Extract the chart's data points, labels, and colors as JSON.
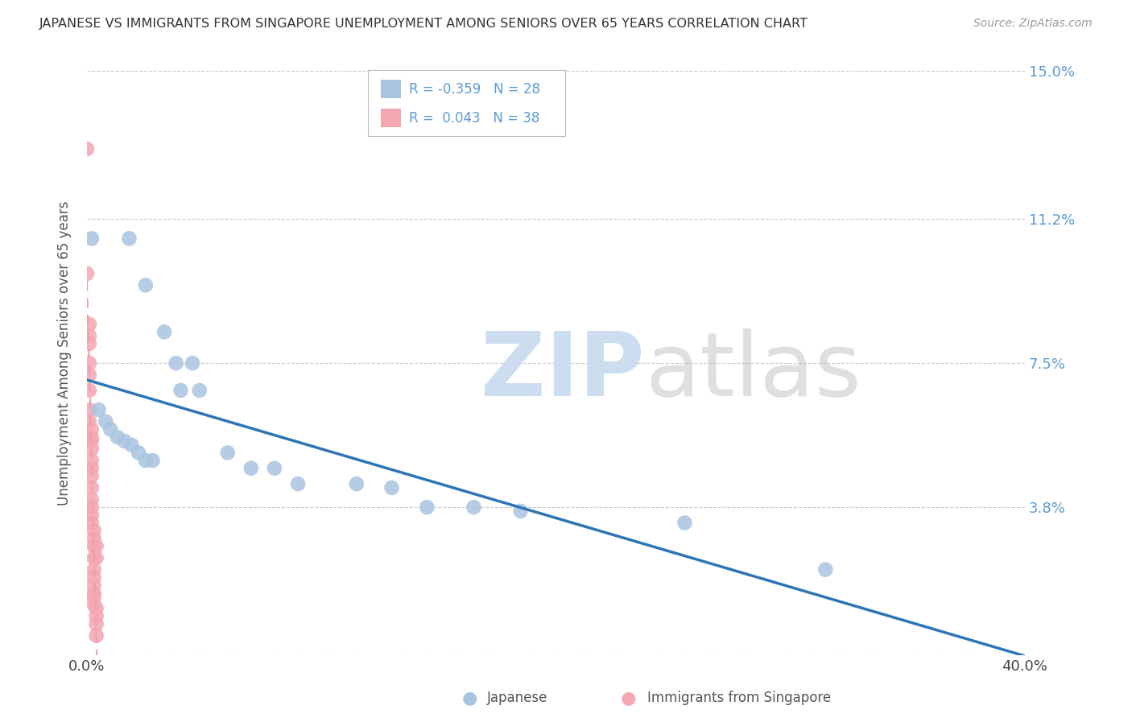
{
  "title": "JAPANESE VS IMMIGRANTS FROM SINGAPORE UNEMPLOYMENT AMONG SENIORS OVER 65 YEARS CORRELATION CHART",
  "source": "Source: ZipAtlas.com",
  "ylabel": "Unemployment Among Seniors over 65 years",
  "xlim": [
    0.0,
    0.4
  ],
  "ylim": [
    0.0,
    0.155
  ],
  "yticks": [
    0.0,
    0.038,
    0.075,
    0.112,
    0.15
  ],
  "ytick_labels": [
    "",
    "3.8%",
    "7.5%",
    "11.2%",
    "15.0%"
  ],
  "xticks": [
    0.0,
    0.1,
    0.2,
    0.3,
    0.4
  ],
  "xtick_labels": [
    "0.0%",
    "",
    "",
    "",
    "40.0%"
  ],
  "japanese_color": "#a8c4e0",
  "singapore_color": "#f4a7b0",
  "line_blue": "#2e75b6",
  "line_pink": "#e8a0a8",
  "japanese_R": "-0.359",
  "japanese_N": "28",
  "singapore_R": "0.043",
  "singapore_N": "38",
  "japanese_points": [
    [
      0.002,
      0.107
    ],
    [
      0.018,
      0.107
    ],
    [
      0.025,
      0.095
    ],
    [
      0.033,
      0.083
    ],
    [
      0.038,
      0.075
    ],
    [
      0.045,
      0.075
    ],
    [
      0.005,
      0.063
    ],
    [
      0.008,
      0.06
    ],
    [
      0.01,
      0.058
    ],
    [
      0.013,
      0.056
    ],
    [
      0.016,
      0.055
    ],
    [
      0.019,
      0.054
    ],
    [
      0.022,
      0.052
    ],
    [
      0.025,
      0.05
    ],
    [
      0.028,
      0.05
    ],
    [
      0.04,
      0.068
    ],
    [
      0.048,
      0.068
    ],
    [
      0.06,
      0.052
    ],
    [
      0.07,
      0.048
    ],
    [
      0.08,
      0.048
    ],
    [
      0.09,
      0.044
    ],
    [
      0.115,
      0.044
    ],
    [
      0.13,
      0.043
    ],
    [
      0.145,
      0.038
    ],
    [
      0.165,
      0.038
    ],
    [
      0.185,
      0.037
    ],
    [
      0.255,
      0.034
    ],
    [
      0.315,
      0.022
    ]
  ],
  "singapore_points": [
    [
      0.0,
      0.13
    ],
    [
      0.0,
      0.098
    ],
    [
      0.001,
      0.085
    ],
    [
      0.001,
      0.082
    ],
    [
      0.001,
      0.08
    ],
    [
      0.001,
      0.075
    ],
    [
      0.001,
      0.072
    ],
    [
      0.001,
      0.068
    ],
    [
      0.001,
      0.063
    ],
    [
      0.001,
      0.06
    ],
    [
      0.002,
      0.058
    ],
    [
      0.002,
      0.056
    ],
    [
      0.002,
      0.055
    ],
    [
      0.002,
      0.053
    ],
    [
      0.002,
      0.05
    ],
    [
      0.002,
      0.048
    ],
    [
      0.002,
      0.046
    ],
    [
      0.002,
      0.043
    ],
    [
      0.002,
      0.04
    ],
    [
      0.002,
      0.038
    ],
    [
      0.002,
      0.036
    ],
    [
      0.002,
      0.034
    ],
    [
      0.003,
      0.032
    ],
    [
      0.003,
      0.03
    ],
    [
      0.003,
      0.028
    ],
    [
      0.003,
      0.025
    ],
    [
      0.003,
      0.022
    ],
    [
      0.003,
      0.02
    ],
    [
      0.003,
      0.018
    ],
    [
      0.003,
      0.016
    ],
    [
      0.003,
      0.015
    ],
    [
      0.003,
      0.013
    ],
    [
      0.004,
      0.012
    ],
    [
      0.004,
      0.01
    ],
    [
      0.004,
      0.028
    ],
    [
      0.004,
      0.025
    ],
    [
      0.004,
      0.008
    ],
    [
      0.004,
      0.005
    ]
  ],
  "background_color": "#ffffff",
  "grid_color": "#cccccc",
  "title_color": "#333333",
  "right_axis_color": "#5b9bd5",
  "watermark_zip_color": "#ccddf0",
  "watermark_atlas_color": "#c0c0c0"
}
